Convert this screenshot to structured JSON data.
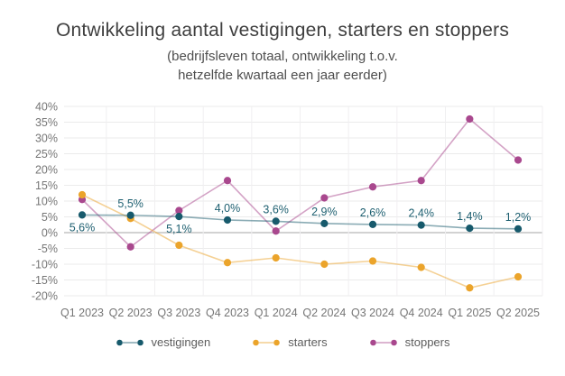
{
  "chart_data": {
    "type": "line",
    "title": "Ontwikkeling aantal vestigingen, starters en stoppers",
    "subtitle_lines": [
      "(bedrijfsleven totaal, ontwikkeling t.o.v.",
      "hetzelfde kwartaal een jaar eerder)"
    ],
    "categories": [
      "Q1 2023",
      "Q2 2023",
      "Q3 2023",
      "Q4 2023",
      "Q1 2024",
      "Q2 2024",
      "Q3 2024",
      "Q4 2024",
      "Q1 2025",
      "Q2 2025"
    ],
    "ylim": [
      -20,
      40
    ],
    "ytick_step": 5,
    "ytick_suffix": "%",
    "grid": true,
    "legend_position": "bottom",
    "axis_text_color": "#767676",
    "series": [
      {
        "name": "vestigingen",
        "color": "#175A6C",
        "label_color": "#1D5F70",
        "values": [
          5.6,
          5.5,
          5.1,
          4.0,
          3.6,
          2.9,
          2.6,
          2.4,
          1.4,
          1.2
        ],
        "point_labels": [
          "5,6%",
          "5,5%",
          "5,1%",
          "4,0%",
          "3,6%",
          "2,9%",
          "2,6%",
          "2,4%",
          "1,4%",
          "1,2%"
        ],
        "label_positions": [
          "below",
          "above",
          "below",
          "above",
          "above",
          "above",
          "above",
          "above",
          "above",
          "above"
        ]
      },
      {
        "name": "starters",
        "color": "#EBA42B",
        "values": [
          12,
          4.5,
          -4,
          -9.5,
          -8,
          -10,
          -9,
          -11,
          -17.5,
          -14
        ]
      },
      {
        "name": "stoppers",
        "color": "#A9488E",
        "values": [
          10.5,
          -4.5,
          7,
          16.5,
          0.5,
          11,
          14.5,
          16.5,
          36,
          23
        ]
      }
    ]
  }
}
